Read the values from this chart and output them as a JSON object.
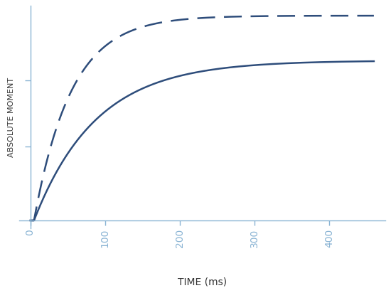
{
  "xlabel": "TIME (ms)",
  "ylabel": "ABSOLUTE MOMENT",
  "xlim": [
    -15,
    475
  ],
  "ylim": [
    -0.04,
    1.1
  ],
  "xticks": [
    0,
    100,
    200,
    300,
    400
  ],
  "ytick_positions": [
    0.38,
    0.72
  ],
  "axis_color": "#8ab4d4",
  "curve_color": "#2e4d7b",
  "bg_color": "#ffffff",
  "solid_asymptote": 0.82,
  "solid_rate": 0.012,
  "solid_shift": 5,
  "dashed_asymptote": 1.05,
  "dashed_rate": 0.02,
  "dashed_shift": 5,
  "line_width": 1.8,
  "dashes_on": 10,
  "dashes_off": 5,
  "xlabel_fontsize": 10,
  "ylabel_fontsize": 8,
  "tick_fontsize": 10,
  "spine_linewidth": 1.0
}
